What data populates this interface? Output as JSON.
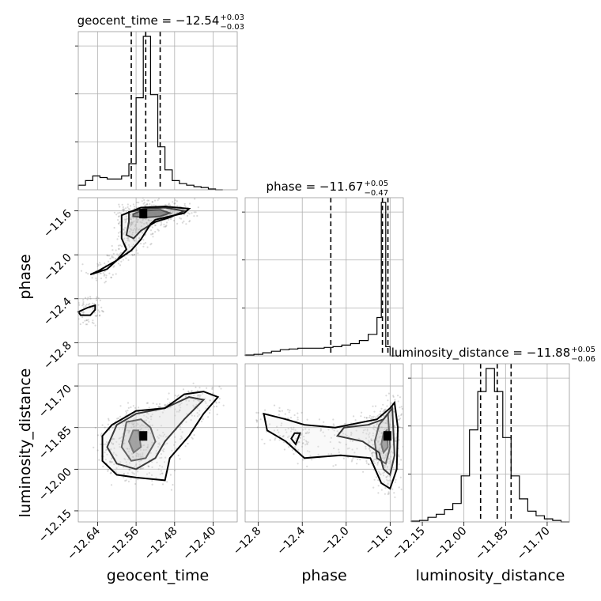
{
  "chart_data": {
    "type": "corner",
    "parameters": [
      "geocent_time",
      "phase",
      "luminosity_distance"
    ],
    "axis_labels": {
      "geocent_time": "geocent_time",
      "phase": "phase",
      "luminosity_distance": "luminosity_distance"
    },
    "titles": [
      {
        "param": "geocent_time",
        "prefix": "geocent_time = ",
        "value": "−12.54",
        "plus": "+0.03",
        "minus": "−0.03"
      },
      {
        "param": "phase",
        "prefix": "phase = ",
        "value": "−11.67",
        "plus": "+0.05",
        "minus": "−0.47"
      },
      {
        "param": "luminosity_distance",
        "prefix": "luminosity_distance = ",
        "value": "−11.88",
        "plus": "+0.05",
        "minus": "−0.06"
      }
    ],
    "ranges": {
      "geocent_time": [
        -12.68,
        -12.35
      ],
      "phase": [
        -12.92,
        -11.48
      ],
      "luminosity_distance": [
        -12.19,
        -11.62
      ]
    },
    "ticks": {
      "geocent_time": [
        {
          "v": -12.64,
          "label": "−12.64"
        },
        {
          "v": -12.56,
          "label": "−12.56"
        },
        {
          "v": -12.48,
          "label": "−12.48"
        },
        {
          "v": -12.4,
          "label": "−12.40"
        }
      ],
      "phase": [
        {
          "v": -12.8,
          "label": "−12.8"
        },
        {
          "v": -12.4,
          "label": "−12.4"
        },
        {
          "v": -12.0,
          "label": "−12.0"
        },
        {
          "v": -11.6,
          "label": "−11.6"
        }
      ],
      "luminosity_distance": [
        {
          "v": -12.15,
          "label": "−12.15"
        },
        {
          "v": -12.0,
          "label": "−12.00"
        },
        {
          "v": -11.85,
          "label": "−11.85"
        },
        {
          "v": -11.7,
          "label": "−11.70"
        }
      ]
    },
    "quantiles": {
      "geocent_time": [
        -12.57,
        -12.54,
        -12.51
      ],
      "phase": [
        -12.14,
        -11.67,
        -11.62
      ],
      "luminosity_distance": [
        -11.94,
        -11.88,
        -11.83
      ]
    },
    "histograms": {
      "geocent_time": {
        "edges": [
          -12.68,
          -12.665,
          -12.65,
          -12.635,
          -12.62,
          -12.605,
          -12.59,
          -12.575,
          -12.56,
          -12.545,
          -12.53,
          -12.515,
          -12.5,
          -12.485,
          -12.47,
          -12.455,
          -12.44,
          -12.425,
          -12.41,
          -12.395,
          -12.38
        ],
        "counts": [
          0.03,
          0.06,
          0.09,
          0.08,
          0.07,
          0.07,
          0.09,
          0.17,
          0.6,
          1.0,
          0.62,
          0.28,
          0.13,
          0.06,
          0.04,
          0.03,
          0.02,
          0.015,
          0.005,
          0.0
        ]
      },
      "phase": {
        "edges": [
          -12.92,
          -12.84,
          -12.76,
          -12.68,
          -12.6,
          -12.52,
          -12.44,
          -12.36,
          -12.28,
          -12.2,
          -12.12,
          -12.04,
          -11.96,
          -11.88,
          -11.8,
          -11.72,
          -11.68,
          -11.64,
          -11.6,
          -11.56,
          -11.52
        ],
        "counts": [
          0.005,
          0.01,
          0.02,
          0.03,
          0.04,
          0.045,
          0.05,
          0.05,
          0.05,
          0.055,
          0.06,
          0.07,
          0.08,
          0.1,
          0.14,
          0.25,
          1.0,
          0.06,
          0.0,
          0.0
        ]
      },
      "luminosity_distance": {
        "edges": [
          -12.19,
          -12.16,
          -12.13,
          -12.1,
          -12.07,
          -12.04,
          -12.01,
          -11.98,
          -11.95,
          -11.92,
          -11.89,
          -11.86,
          -11.83,
          -11.8,
          -11.77,
          -11.74,
          -11.71,
          -11.68,
          -11.65,
          -11.62
        ],
        "counts": [
          0.005,
          0.01,
          0.03,
          0.05,
          0.08,
          0.12,
          0.3,
          0.6,
          0.85,
          1.0,
          0.85,
          0.55,
          0.3,
          0.15,
          0.07,
          0.04,
          0.02,
          0.01,
          0.0
        ]
      }
    },
    "samples": {
      "geocent_time": [
        -12.54,
        -12.55,
        -12.53,
        -12.56,
        -12.57,
        -12.52,
        -12.5,
        -12.47,
        -12.44,
        -12.41,
        -12.39,
        -12.45,
        -12.48,
        -12.58,
        -12.6,
        -12.62,
        -12.64,
        -12.66,
        -12.63,
        -12.61,
        -12.59,
        -12.57,
        -12.55,
        -12.53,
        -12.51,
        -12.49,
        -12.46,
        -12.43,
        -12.4,
        -12.38
      ],
      "phase": [
        -11.65,
        -11.66,
        -11.68,
        -11.7,
        -11.75,
        -11.62,
        -11.6,
        -11.58,
        -11.56,
        -11.55,
        -11.54,
        -11.63,
        -11.7,
        -11.85,
        -12.0,
        -12.15,
        -12.3,
        -12.45,
        -12.55,
        -12.6,
        -12.65,
        -12.7,
        -12.75,
        -12.8,
        -12.82,
        -12.85,
        -12.78,
        -12.72,
        -12.66,
        -12.6
      ],
      "luminosity_distance": [
        -11.88,
        -11.9,
        -11.86,
        -11.92,
        -11.84,
        -11.8,
        -11.78,
        -11.75,
        -11.72,
        -11.7,
        -11.68,
        -11.82,
        -11.87,
        -11.9,
        -11.95,
        -12.0,
        -12.05,
        -11.97,
        -11.93,
        -11.9,
        -11.88,
        -11.92,
        -11.98,
        -12.02,
        -12.06,
        -12.03,
        -11.99,
        -11.95,
        -11.91,
        -11.87
      ]
    },
    "contours": {
      "geocent_time__phase": [
        [
          [
            -12.566,
            -11.63
          ],
          [
            -12.55,
            -11.6
          ],
          [
            -12.51,
            -11.59
          ],
          [
            -12.49,
            -11.62
          ],
          [
            -12.51,
            -11.65
          ],
          [
            -12.54,
            -11.66
          ],
          [
            -12.566,
            -11.65
          ],
          [
            -12.566,
            -11.63
          ]
        ],
        [
          [
            -12.575,
            -11.61
          ],
          [
            -12.54,
            -11.58
          ],
          [
            -12.5,
            -11.57
          ],
          [
            -12.46,
            -11.6
          ],
          [
            -12.49,
            -11.66
          ],
          [
            -12.52,
            -11.7
          ],
          [
            -12.55,
            -11.78
          ],
          [
            -12.565,
            -11.85
          ],
          [
            -12.58,
            -11.82
          ],
          [
            -12.575,
            -11.7
          ],
          [
            -12.575,
            -11.61
          ]
        ],
        [
          [
            -12.59,
            -11.64
          ],
          [
            -12.55,
            -11.57
          ],
          [
            -12.5,
            -11.56
          ],
          [
            -12.45,
            -11.58
          ],
          [
            -12.46,
            -11.62
          ],
          [
            -12.52,
            -11.68
          ],
          [
            -12.53,
            -11.72
          ],
          [
            -12.55,
            -11.86
          ],
          [
            -12.57,
            -11.96
          ],
          [
            -12.6,
            -12.05
          ],
          [
            -12.64,
            -12.15
          ],
          [
            -12.655,
            -12.18
          ],
          [
            -12.62,
            -12.13
          ],
          [
            -12.6,
            -12.05
          ],
          [
            -12.58,
            -11.95
          ],
          [
            -12.59,
            -11.85
          ],
          [
            -12.59,
            -11.73
          ],
          [
            -12.59,
            -11.64
          ]
        ],
        [
          [
            -12.66,
            -12.48
          ],
          [
            -12.645,
            -12.46
          ],
          [
            -12.645,
            -12.5
          ],
          [
            -12.655,
            -12.55
          ],
          [
            -12.675,
            -12.55
          ],
          [
            -12.68,
            -12.52
          ],
          [
            -12.66,
            -12.48
          ]
        ]
      ],
      "geocent_time__luminosity_distance": [
        [
          [
            -12.566,
            -11.86
          ],
          [
            -12.555,
            -11.86
          ],
          [
            -12.55,
            -11.92
          ],
          [
            -12.565,
            -11.94
          ],
          [
            -12.575,
            -11.9
          ],
          [
            -12.566,
            -11.86
          ]
        ],
        [
          [
            -12.58,
            -11.83
          ],
          [
            -12.55,
            -11.82
          ],
          [
            -12.53,
            -11.85
          ],
          [
            -12.52,
            -11.9
          ],
          [
            -12.54,
            -11.96
          ],
          [
            -12.57,
            -11.97
          ],
          [
            -12.59,
            -11.92
          ],
          [
            -12.58,
            -11.83
          ]
        ],
        [
          [
            -12.6,
            -11.84
          ],
          [
            -12.56,
            -11.8
          ],
          [
            -12.5,
            -11.78
          ],
          [
            -12.45,
            -11.74
          ],
          [
            -12.42,
            -11.75
          ],
          [
            -12.46,
            -11.82
          ],
          [
            -12.5,
            -11.9
          ],
          [
            -12.52,
            -11.96
          ],
          [
            -12.56,
            -12.0
          ],
          [
            -12.6,
            -11.98
          ],
          [
            -12.62,
            -11.92
          ],
          [
            -12.6,
            -11.84
          ]
        ],
        [
          [
            -12.61,
            -11.84
          ],
          [
            -12.56,
            -11.79
          ],
          [
            -12.5,
            -11.78
          ],
          [
            -12.46,
            -11.73
          ],
          [
            -12.42,
            -11.72
          ],
          [
            -12.39,
            -11.74
          ],
          [
            -12.42,
            -11.8
          ],
          [
            -12.45,
            -11.88
          ],
          [
            -12.49,
            -11.96
          ],
          [
            -12.5,
            -12.04
          ],
          [
            -12.56,
            -12.03
          ],
          [
            -12.6,
            -12.02
          ],
          [
            -12.63,
            -11.97
          ],
          [
            -12.63,
            -11.88
          ],
          [
            -12.61,
            -11.84
          ]
        ]
      ],
      "phase__luminosity_distance": [
        [
          [
            -11.63,
            -11.86
          ],
          [
            -11.66,
            -11.87
          ],
          [
            -11.68,
            -11.91
          ],
          [
            -11.66,
            -11.94
          ],
          [
            -11.62,
            -11.92
          ],
          [
            -11.63,
            -11.86
          ]
        ],
        [
          [
            -11.62,
            -11.8
          ],
          [
            -11.7,
            -11.84
          ],
          [
            -11.74,
            -11.9
          ],
          [
            -11.72,
            -11.96
          ],
          [
            -11.64,
            -11.98
          ],
          [
            -11.6,
            -11.92
          ],
          [
            -11.62,
            -11.8
          ]
        ],
        [
          [
            -11.58,
            -11.78
          ],
          [
            -11.66,
            -11.82
          ],
          [
            -11.8,
            -11.84
          ],
          [
            -12.02,
            -11.85
          ],
          [
            -12.08,
            -11.88
          ],
          [
            -11.85,
            -11.9
          ],
          [
            -11.7,
            -11.94
          ],
          [
            -11.66,
            -12.0
          ],
          [
            -11.6,
            -12.02
          ],
          [
            -11.56,
            -11.95
          ],
          [
            -11.58,
            -11.78
          ]
        ],
        [
          [
            -11.56,
            -11.76
          ],
          [
            -11.6,
            -11.78
          ],
          [
            -11.72,
            -11.82
          ],
          [
            -12.1,
            -11.85
          ],
          [
            -12.38,
            -11.84
          ],
          [
            -12.55,
            -11.82
          ],
          [
            -12.75,
            -11.8
          ],
          [
            -12.72,
            -11.86
          ],
          [
            -12.55,
            -11.9
          ],
          [
            -12.38,
            -11.96
          ],
          [
            -12.05,
            -11.95
          ],
          [
            -11.78,
            -11.96
          ],
          [
            -11.68,
            -12.05
          ],
          [
            -11.6,
            -12.07
          ],
          [
            -11.54,
            -12.0
          ],
          [
            -11.53,
            -11.85
          ],
          [
            -11.56,
            -11.76
          ]
        ],
        [
          [
            -12.42,
            -11.87
          ],
          [
            -12.47,
            -11.87
          ],
          [
            -12.5,
            -11.89
          ],
          [
            -12.46,
            -11.91
          ],
          [
            -12.42,
            -11.87
          ]
        ]
      ]
    },
    "peaks": {
      "geocent_time__phase": [
        -12.545,
        -11.625
      ],
      "geocent_time__luminosity_distance": [
        -12.545,
        -11.88
      ],
      "phase__luminosity_distance": [
        -11.625,
        -11.88
      ]
    }
  }
}
